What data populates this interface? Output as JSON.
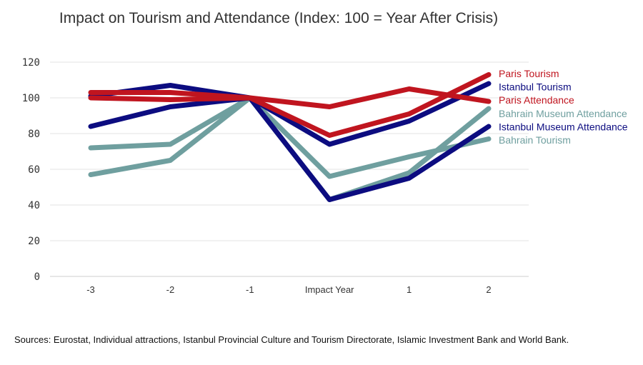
{
  "chart_data": {
    "type": "line",
    "title": "Impact on Tourism and Attendance (Index: 100 = Year After Crisis)",
    "xlabel": "",
    "ylabel": "",
    "categories": [
      "-3",
      "-2",
      "-1",
      "Impact Year",
      "1",
      "2"
    ],
    "ylim": [
      0,
      120
    ],
    "yticks": [
      "0",
      "20",
      "40",
      "60",
      "80",
      "100",
      "120"
    ],
    "grid": true,
    "legend": "right",
    "series": [
      {
        "name": "Paris Tourism",
        "color": "#c0151f",
        "values": [
          103,
          103,
          100,
          79,
          91,
          113
        ]
      },
      {
        "name": "Istanbul Tourism",
        "color": "#0c0c80",
        "values": [
          101,
          107,
          100,
          74,
          87,
          108
        ]
      },
      {
        "name": "Paris Attendance",
        "color": "#c0151f",
        "values": [
          100,
          99,
          100,
          95,
          105,
          98
        ]
      },
      {
        "name": "Bahrain Museum Attendance",
        "color": "#6f9f9f",
        "values": [
          72,
          74,
          100,
          43,
          58,
          94
        ]
      },
      {
        "name": "Istanbul Museum Attendance",
        "color": "#0c0c80",
        "values": [
          84,
          95,
          100,
          43,
          55,
          84
        ]
      },
      {
        "name": "Bahrain Tourism",
        "color": "#6f9f9f",
        "values": [
          57,
          65,
          100,
          56,
          67,
          77
        ]
      }
    ]
  },
  "source_note": "Sources: Eurostat, Individual attractions, Istanbul Provincial Culture and Tourism Directorate, Islamic Investment Bank and World Bank."
}
